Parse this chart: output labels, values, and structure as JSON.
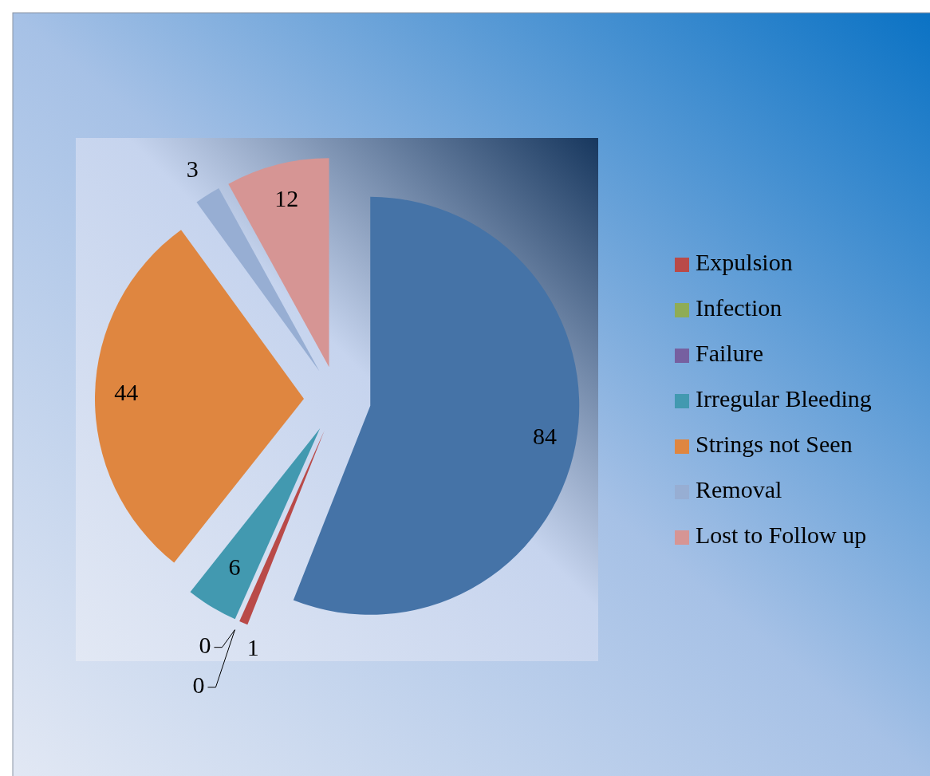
{
  "chart_data": {
    "type": "pie",
    "categories": [
      null,
      "Expulsion",
      "Infection",
      "Failure",
      "Irregular Bleeding",
      "Strings not Seen",
      "Removal",
      "Lost to Follow up"
    ],
    "values": [
      84,
      1,
      0,
      0,
      6,
      44,
      3,
      12
    ],
    "colors": [
      "#4573a7",
      "#b94a48",
      "#8fac55",
      "#7660a0",
      "#4299b0",
      "#df8640",
      "#97aed3",
      "#d69594"
    ],
    "value_labels": [
      "84",
      "1",
      "0",
      "0",
      "6",
      "44",
      "3",
      "12"
    ],
    "legend": "right"
  }
}
